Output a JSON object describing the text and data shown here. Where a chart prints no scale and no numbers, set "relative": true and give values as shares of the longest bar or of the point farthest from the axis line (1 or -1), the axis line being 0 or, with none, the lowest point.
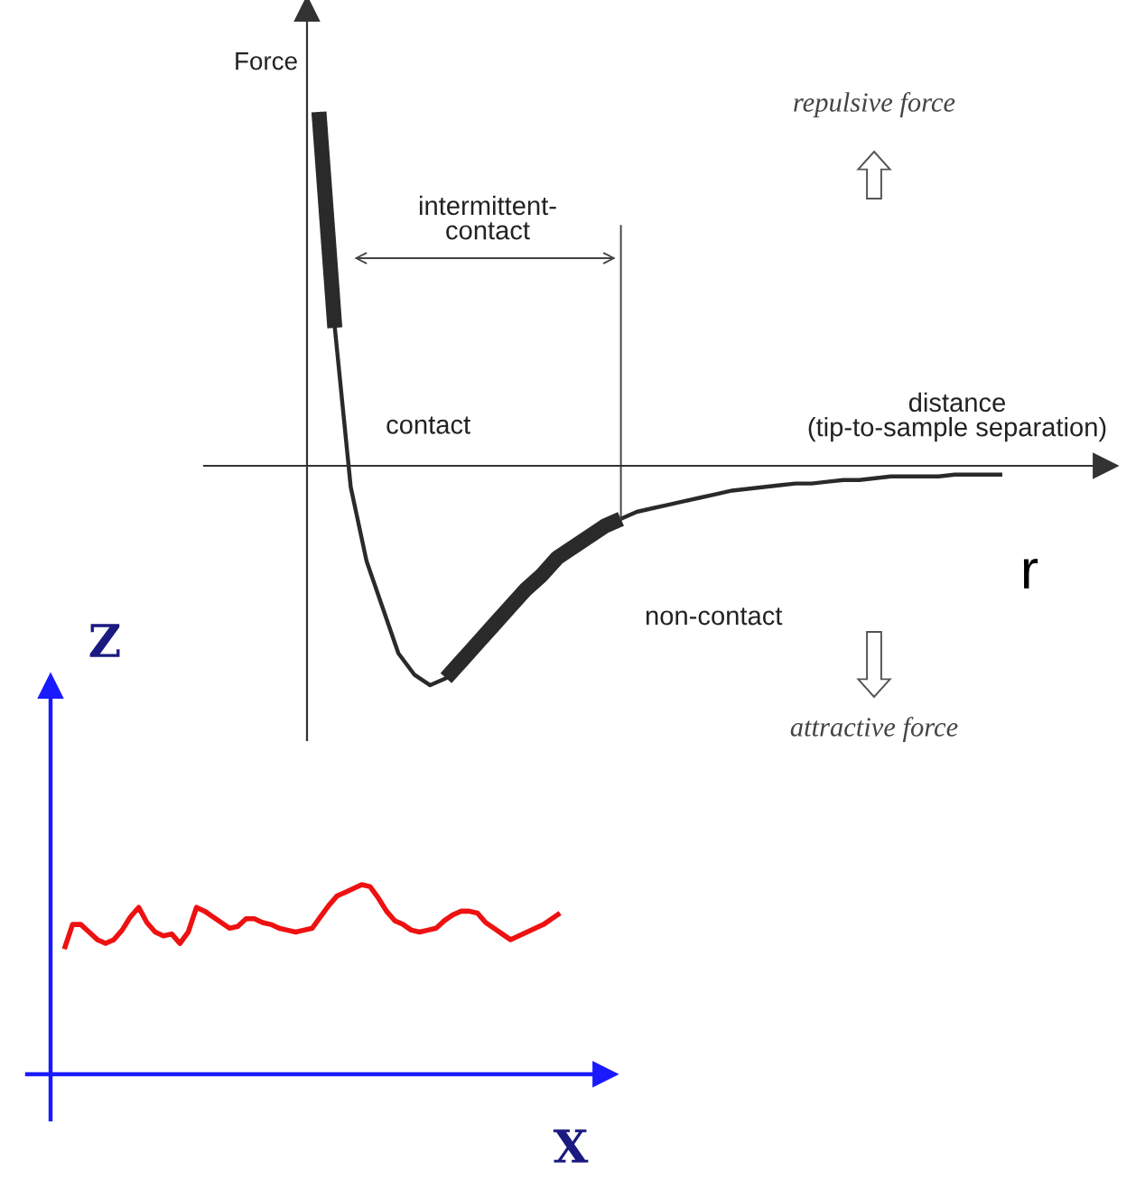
{
  "chart_data": [
    {
      "type": "line",
      "relative": true,
      "ylabel": "Force",
      "xlabel": "distance\n(tip-to-sample separation)",
      "annotations": [
        "intermittent-\ncontact",
        "repulsive force",
        "attractive force",
        "r"
      ],
      "categories": [
        null,
        null,
        null,
        null,
        null,
        null,
        null,
        null,
        null,
        null,
        null,
        null,
        null,
        null,
        null,
        null,
        null,
        null,
        null,
        null,
        null,
        null,
        null,
        null,
        null,
        null,
        null,
        null,
        null,
        null,
        null,
        null,
        null,
        null,
        null,
        null,
        null,
        null,
        null,
        null,
        null,
        null,
        null,
        null
      ],
      "series": [
        {
          "color": "#2a2a2a",
          "values": [
            1.0,
            0.39,
            -0.06,
            -0.27,
            -0.4,
            -0.53,
            -0.59,
            -0.62,
            -0.6,
            -0.55,
            -0.5,
            -0.45,
            -0.4,
            -0.35,
            -0.31,
            -0.26,
            -0.23,
            -0.2,
            -0.17,
            -0.15,
            -0.13,
            -0.12,
            -0.11,
            -0.1,
            -0.09,
            -0.08,
            -0.07,
            -0.065,
            -0.06,
            -0.055,
            -0.05,
            -0.05,
            -0.045,
            -0.04,
            -0.04,
            -0.035,
            -0.03,
            -0.03,
            -0.03,
            -0.03,
            -0.025,
            -0.025,
            -0.025,
            -0.025
          ]
        },
        {
          "name": "contact",
          "color": "#2a2a2a",
          "values": [
            1.0,
            0.39,
            null,
            null,
            null,
            null,
            null,
            null,
            null,
            null,
            null,
            null,
            null,
            null,
            null,
            null,
            null,
            null,
            null,
            null,
            null,
            null,
            null,
            null,
            null,
            null,
            null,
            null,
            null,
            null,
            null,
            null,
            null,
            null,
            null,
            null,
            null,
            null,
            null,
            null,
            null,
            null,
            null,
            null
          ]
        },
        {
          "name": "non-contact",
          "color": "#2a2a2a",
          "values": [
            null,
            null,
            null,
            null,
            null,
            null,
            null,
            null,
            -0.6,
            -0.55,
            -0.5,
            -0.45,
            -0.4,
            -0.35,
            -0.31,
            -0.26,
            -0.23,
            -0.2,
            -0.17,
            -0.15,
            null,
            null,
            null,
            null,
            null,
            null,
            null,
            null,
            null,
            null,
            null,
            null,
            null,
            null,
            null,
            null,
            null,
            null,
            null,
            null,
            null,
            null,
            null,
            null
          ]
        }
      ]
    },
    {
      "type": "line",
      "relative": true,
      "ylabel": "Z",
      "xlabel": "X",
      "categories": [
        null,
        null,
        null,
        null,
        null,
        null,
        null,
        null,
        null,
        null,
        null,
        null,
        null,
        null,
        null,
        null,
        null,
        null,
        null,
        null,
        null,
        null,
        null,
        null,
        null,
        null,
        null,
        null,
        null,
        null,
        null,
        null,
        null,
        null,
        null,
        null,
        null,
        null,
        null,
        null,
        null,
        null,
        null,
        null,
        null,
        null,
        null,
        null,
        null,
        null,
        null,
        null,
        null,
        null,
        null,
        null,
        null,
        null,
        null,
        null,
        null
      ],
      "series": [
        {
          "color": "#ee1111",
          "values": [
            0.66,
            0.79,
            0.79,
            0.75,
            0.71,
            0.69,
            0.71,
            0.76,
            0.83,
            0.88,
            0.8,
            0.75,
            0.73,
            0.74,
            0.69,
            0.75,
            0.88,
            0.86,
            0.83,
            0.8,
            0.77,
            0.78,
            0.82,
            0.82,
            0.8,
            0.79,
            0.77,
            0.76,
            0.75,
            0.76,
            0.77,
            0.83,
            0.89,
            0.94,
            0.96,
            0.98,
            1.0,
            0.99,
            0.93,
            0.86,
            0.81,
            0.79,
            0.76,
            0.75,
            0.76,
            0.77,
            0.81,
            0.84,
            0.86,
            0.86,
            0.85,
            0.8,
            0.77,
            0.74,
            0.71,
            0.73,
            0.75,
            0.77,
            0.79,
            0.82,
            0.85
          ]
        }
      ]
    }
  ]
}
